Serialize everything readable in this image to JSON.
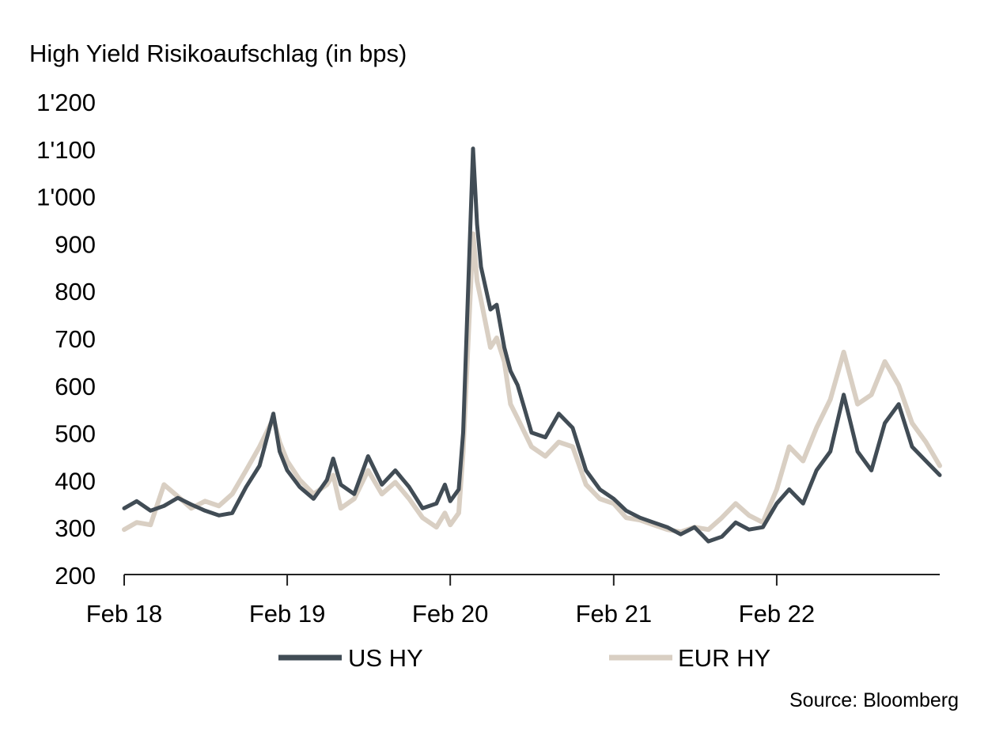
{
  "chart_data": {
    "type": "line",
    "title": "High Yield Risikoaufschlag (in bps)",
    "source": "Source: Bloomberg",
    "xlabel": "",
    "ylabel": "",
    "x_range": [
      "2018-02-01",
      "2023-02-01"
    ],
    "x_ticks": [
      {
        "date": "2018-02-01",
        "label": "Feb 18"
      },
      {
        "date": "2019-02-01",
        "label": "Feb 19"
      },
      {
        "date": "2020-02-01",
        "label": "Feb 20"
      },
      {
        "date": "2021-02-01",
        "label": "Feb 21"
      },
      {
        "date": "2022-02-01",
        "label": "Feb 22"
      }
    ],
    "ylim": [
      200,
      1200
    ],
    "y_ticks": [
      {
        "value": 200,
        "label": "200"
      },
      {
        "value": 300,
        "label": "300"
      },
      {
        "value": 400,
        "label": "400"
      },
      {
        "value": 500,
        "label": "500"
      },
      {
        "value": 600,
        "label": "600"
      },
      {
        "value": 700,
        "label": "700"
      },
      {
        "value": 800,
        "label": "800"
      },
      {
        "value": 900,
        "label": "900"
      },
      {
        "value": 1000,
        "label": "1'000"
      },
      {
        "value": 1100,
        "label": "1'100"
      },
      {
        "value": 1200,
        "label": "1'200"
      }
    ],
    "grid": false,
    "legend_position": "bottom",
    "colors": {
      "US HY": "#414c55",
      "EUR HY": "#d9cfc3",
      "axis": "#222222"
    },
    "series": [
      {
        "name": "US HY",
        "points": [
          [
            "2018-02-01",
            340
          ],
          [
            "2018-03-01",
            355
          ],
          [
            "2018-04-01",
            335
          ],
          [
            "2018-05-01",
            345
          ],
          [
            "2018-06-01",
            362
          ],
          [
            "2018-07-01",
            348
          ],
          [
            "2018-08-01",
            335
          ],
          [
            "2018-09-01",
            325
          ],
          [
            "2018-10-01",
            330
          ],
          [
            "2018-11-01",
            385
          ],
          [
            "2018-12-01",
            430
          ],
          [
            "2019-01-01",
            540
          ],
          [
            "2019-01-15",
            460
          ],
          [
            "2019-02-01",
            420
          ],
          [
            "2019-03-01",
            385
          ],
          [
            "2019-04-01",
            360
          ],
          [
            "2019-05-01",
            400
          ],
          [
            "2019-05-15",
            445
          ],
          [
            "2019-06-01",
            390
          ],
          [
            "2019-07-01",
            370
          ],
          [
            "2019-08-01",
            450
          ],
          [
            "2019-09-01",
            390
          ],
          [
            "2019-10-01",
            420
          ],
          [
            "2019-11-01",
            385
          ],
          [
            "2019-12-01",
            340
          ],
          [
            "2020-01-01",
            350
          ],
          [
            "2020-01-20",
            390
          ],
          [
            "2020-02-01",
            355
          ],
          [
            "2020-02-20",
            380
          ],
          [
            "2020-03-01",
            500
          ],
          [
            "2020-03-23",
            1100
          ],
          [
            "2020-04-01",
            940
          ],
          [
            "2020-04-10",
            850
          ],
          [
            "2020-05-01",
            760
          ],
          [
            "2020-05-15",
            770
          ],
          [
            "2020-06-01",
            680
          ],
          [
            "2020-06-15",
            630
          ],
          [
            "2020-07-01",
            600
          ],
          [
            "2020-08-01",
            500
          ],
          [
            "2020-09-01",
            490
          ],
          [
            "2020-10-01",
            540
          ],
          [
            "2020-11-01",
            510
          ],
          [
            "2020-12-01",
            420
          ],
          [
            "2021-01-01",
            380
          ],
          [
            "2021-02-01",
            360
          ],
          [
            "2021-03-01",
            335
          ],
          [
            "2021-04-01",
            320
          ],
          [
            "2021-05-01",
            310
          ],
          [
            "2021-06-01",
            300
          ],
          [
            "2021-07-01",
            285
          ],
          [
            "2021-08-01",
            300
          ],
          [
            "2021-09-01",
            270
          ],
          [
            "2021-10-01",
            280
          ],
          [
            "2021-11-01",
            310
          ],
          [
            "2021-12-01",
            295
          ],
          [
            "2022-01-01",
            300
          ],
          [
            "2022-02-01",
            350
          ],
          [
            "2022-03-01",
            380
          ],
          [
            "2022-04-01",
            350
          ],
          [
            "2022-05-01",
            420
          ],
          [
            "2022-06-01",
            460
          ],
          [
            "2022-07-01",
            580
          ],
          [
            "2022-08-01",
            460
          ],
          [
            "2022-09-01",
            420
          ],
          [
            "2022-10-01",
            520
          ],
          [
            "2022-11-01",
            560
          ],
          [
            "2022-12-01",
            470
          ],
          [
            "2023-01-01",
            440
          ],
          [
            "2023-02-01",
            410
          ]
        ]
      },
      {
        "name": "EUR HY",
        "points": [
          [
            "2018-02-01",
            295
          ],
          [
            "2018-03-01",
            310
          ],
          [
            "2018-04-01",
            305
          ],
          [
            "2018-05-01",
            390
          ],
          [
            "2018-06-01",
            365
          ],
          [
            "2018-07-01",
            340
          ],
          [
            "2018-08-01",
            355
          ],
          [
            "2018-09-01",
            345
          ],
          [
            "2018-10-01",
            370
          ],
          [
            "2018-11-01",
            420
          ],
          [
            "2018-12-01",
            470
          ],
          [
            "2019-01-01",
            530
          ],
          [
            "2019-01-15",
            480
          ],
          [
            "2019-02-01",
            440
          ],
          [
            "2019-03-01",
            400
          ],
          [
            "2019-04-01",
            370
          ],
          [
            "2019-05-01",
            390
          ],
          [
            "2019-05-15",
            410
          ],
          [
            "2019-06-01",
            340
          ],
          [
            "2019-07-01",
            360
          ],
          [
            "2019-08-01",
            420
          ],
          [
            "2019-09-01",
            370
          ],
          [
            "2019-10-01",
            395
          ],
          [
            "2019-11-01",
            360
          ],
          [
            "2019-12-01",
            320
          ],
          [
            "2020-01-01",
            300
          ],
          [
            "2020-01-20",
            330
          ],
          [
            "2020-02-01",
            305
          ],
          [
            "2020-02-20",
            330
          ],
          [
            "2020-03-01",
            460
          ],
          [
            "2020-03-23",
            920
          ],
          [
            "2020-04-01",
            820
          ],
          [
            "2020-04-10",
            780
          ],
          [
            "2020-05-01",
            680
          ],
          [
            "2020-05-15",
            700
          ],
          [
            "2020-06-01",
            650
          ],
          [
            "2020-06-15",
            560
          ],
          [
            "2020-07-01",
            530
          ],
          [
            "2020-08-01",
            470
          ],
          [
            "2020-09-01",
            450
          ],
          [
            "2020-10-01",
            480
          ],
          [
            "2020-11-01",
            470
          ],
          [
            "2020-12-01",
            390
          ],
          [
            "2021-01-01",
            360
          ],
          [
            "2021-02-01",
            350
          ],
          [
            "2021-03-01",
            320
          ],
          [
            "2021-04-01",
            315
          ],
          [
            "2021-05-01",
            305
          ],
          [
            "2021-06-01",
            295
          ],
          [
            "2021-07-01",
            290
          ],
          [
            "2021-08-01",
            300
          ],
          [
            "2021-09-01",
            295
          ],
          [
            "2021-10-01",
            320
          ],
          [
            "2021-11-01",
            350
          ],
          [
            "2021-12-01",
            325
          ],
          [
            "2022-01-01",
            310
          ],
          [
            "2022-02-01",
            380
          ],
          [
            "2022-03-01",
            470
          ],
          [
            "2022-04-01",
            440
          ],
          [
            "2022-05-01",
            510
          ],
          [
            "2022-06-01",
            570
          ],
          [
            "2022-07-01",
            670
          ],
          [
            "2022-08-01",
            560
          ],
          [
            "2022-09-01",
            580
          ],
          [
            "2022-10-01",
            650
          ],
          [
            "2022-11-01",
            600
          ],
          [
            "2022-12-01",
            520
          ],
          [
            "2023-01-01",
            480
          ],
          [
            "2023-02-01",
            430
          ]
        ]
      }
    ]
  }
}
